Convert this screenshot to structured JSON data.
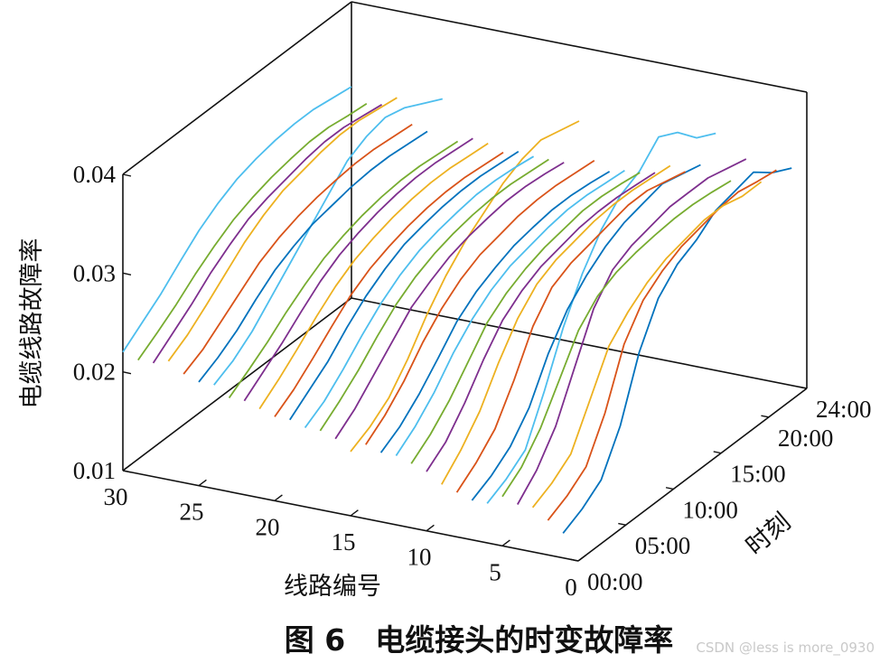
{
  "caption": "图 6　电缆接头的时变故障率",
  "watermark": "CSDN @less is more_0930",
  "chart_data": {
    "type": "line",
    "title": "",
    "zlabel": "电缆线路故障率",
    "xlabel": "线路编号",
    "ylabel": "时刻",
    "zlim": [
      0.01,
      0.04
    ],
    "z_ticks": [
      "0.01",
      "0.02",
      "0.03",
      "0.04"
    ],
    "x_ticks": [
      "0",
      "5",
      "10",
      "15",
      "20",
      "25",
      "30"
    ],
    "y_ticks": [
      "00:00",
      "05:00",
      "10:00",
      "15:00",
      "20:00",
      "24:00"
    ],
    "x_range": [
      0,
      30
    ],
    "y_range": [
      0,
      24
    ],
    "hours": [
      0,
      2,
      4,
      6,
      8,
      10,
      12,
      14,
      16,
      18,
      20,
      22,
      24
    ],
    "colors": [
      "#0072BD",
      "#D95319",
      "#EDB120",
      "#7E2F8E",
      "#77AC30",
      "#4DBEEE"
    ],
    "series": [
      {
        "line": 1,
        "values": [
          0.0125,
          0.0135,
          0.015,
          0.019,
          0.025,
          0.029,
          0.031,
          0.032,
          0.0335,
          0.034,
          0.0345,
          0.033,
          0.032
        ]
      },
      {
        "line": 2,
        "values": [
          0.0135,
          0.0145,
          0.016,
          0.02,
          0.0255,
          0.0285,
          0.03,
          0.031,
          0.0315,
          0.032,
          0.0322,
          0.0318,
          0.0315
        ]
      },
      {
        "line": 3,
        "values": [
          0.0145,
          0.0155,
          0.017,
          0.021,
          0.025,
          0.027,
          0.0285,
          0.0295,
          0.03,
          0.0305,
          0.0305,
          0.03,
          0.03
        ]
      },
      {
        "line": 4,
        "values": [
          0.0145,
          0.0165,
          0.0195,
          0.024,
          0.0285,
          0.031,
          0.032,
          0.0325,
          0.033,
          0.033,
          0.033,
          0.0325,
          0.032
        ]
      },
      {
        "line": 5,
        "values": [
          0.015,
          0.0165,
          0.019,
          0.0225,
          0.026,
          0.028,
          0.029,
          0.0295,
          0.0298,
          0.03,
          0.03,
          0.0298,
          0.0295
        ]
      },
      {
        "line": 6,
        "values": [
          0.014,
          0.015,
          0.0165,
          0.021,
          0.026,
          0.03,
          0.033,
          0.035,
          0.036,
          0.038,
          0.037,
          0.035,
          0.034
        ]
      },
      {
        "line": 7,
        "values": [
          0.014,
          0.015,
          0.0165,
          0.019,
          0.023,
          0.026,
          0.028,
          0.0295,
          0.0305,
          0.031,
          0.0315,
          0.031,
          0.0305
        ]
      },
      {
        "line": 8,
        "values": [
          0.0145,
          0.016,
          0.018,
          0.0215,
          0.0255,
          0.028,
          0.029,
          0.0295,
          0.03,
          0.0305,
          0.0305,
          0.03,
          0.0295
        ]
      },
      {
        "line": 9,
        "values": [
          0.015,
          0.017,
          0.0195,
          0.023,
          0.026,
          0.028,
          0.029,
          0.0295,
          0.03,
          0.0302,
          0.0302,
          0.03,
          0.0298
        ]
      },
      {
        "line": 10,
        "values": [
          0.016,
          0.0175,
          0.02,
          0.023,
          0.0255,
          0.027,
          0.028,
          0.0285,
          0.029,
          0.0292,
          0.0292,
          0.029,
          0.0288
        ]
      },
      {
        "line": 11,
        "values": [
          0.0165,
          0.018,
          0.02,
          0.0225,
          0.025,
          0.0265,
          0.0275,
          0.0282,
          0.0286,
          0.029,
          0.029,
          0.0288,
          0.0285
        ]
      },
      {
        "line": 12,
        "values": [
          0.017,
          0.0185,
          0.0205,
          0.023,
          0.025,
          0.0265,
          0.0275,
          0.028,
          0.0285,
          0.0288,
          0.0288,
          0.0286,
          0.0284
        ]
      },
      {
        "line": 13,
        "values": [
          0.017,
          0.0182,
          0.02,
          0.0222,
          0.0245,
          0.026,
          0.027,
          0.0278,
          0.0282,
          0.0285,
          0.0285,
          0.0283,
          0.028
        ]
      },
      {
        "line": 14,
        "values": [
          0.0175,
          0.019,
          0.021,
          0.0235,
          0.0255,
          0.027,
          0.028,
          0.0285,
          0.029,
          0.0292,
          0.0292,
          0.029,
          0.0288
        ]
      },
      {
        "line": 15,
        "values": [
          0.0165,
          0.0175,
          0.019,
          0.0215,
          0.0245,
          0.027,
          0.029,
          0.0305,
          0.032,
          0.033,
          0.0335,
          0.033,
          0.0325
        ]
      },
      {
        "line": 16,
        "values": [
          0.0175,
          0.019,
          0.021,
          0.023,
          0.025,
          0.0262,
          0.0272,
          0.0278,
          0.0282,
          0.0285,
          0.0285,
          0.0283,
          0.028
        ]
      },
      {
        "line": 17,
        "values": [
          0.018,
          0.0195,
          0.0212,
          0.0232,
          0.025,
          0.0263,
          0.0272,
          0.0278,
          0.0282,
          0.0284,
          0.0284,
          0.0282,
          0.028
        ]
      },
      {
        "line": 18,
        "values": [
          0.018,
          0.0192,
          0.021,
          0.023,
          0.0248,
          0.0262,
          0.0272,
          0.0278,
          0.0282,
          0.0285,
          0.0285,
          0.0283,
          0.028
        ]
      },
      {
        "line": 19,
        "values": [
          0.0185,
          0.02,
          0.0215,
          0.0235,
          0.0252,
          0.0265,
          0.0275,
          0.028,
          0.0284,
          0.0286,
          0.0286,
          0.0284,
          0.0282
        ]
      },
      {
        "line": 20,
        "values": [
          0.0185,
          0.0198,
          0.0215,
          0.0233,
          0.025,
          0.0262,
          0.027,
          0.0276,
          0.028,
          0.0282,
          0.0282,
          0.028,
          0.0278
        ]
      },
      {
        "line": 21,
        "values": [
          0.019,
          0.0205,
          0.0222,
          0.024,
          0.0256,
          0.0268,
          0.0276,
          0.0282,
          0.0286,
          0.0288,
          0.0288,
          0.0286,
          0.0284
        ]
      },
      {
        "line": 22,
        "values": [
          0.0195,
          0.021,
          0.0225,
          0.0242,
          0.0258,
          0.027,
          0.0278,
          0.0284,
          0.0288,
          0.029,
          0.029,
          0.0288,
          0.0286
        ]
      },
      {
        "line": 23,
        "values": [
          0.0195,
          0.0208,
          0.0222,
          0.0238,
          0.0252,
          0.0264,
          0.0272,
          0.0278,
          0.0282,
          0.0284,
          0.0284,
          0.0282,
          0.028
        ]
      },
      {
        "line": 24,
        "values": [
          0.0205,
          0.0215,
          0.023,
          0.025,
          0.027,
          0.029,
          0.031,
          0.033,
          0.034,
          0.0345,
          0.034,
          0.033,
          0.032
        ]
      },
      {
        "line": 25,
        "values": [
          0.0205,
          0.0215,
          0.0228,
          0.0245,
          0.026,
          0.027,
          0.0278,
          0.0282,
          0.0286,
          0.0288,
          0.0288,
          0.0286,
          0.0284
        ]
      },
      {
        "line": 26,
        "values": [
          0.021,
          0.022,
          0.0235,
          0.025,
          0.0265,
          0.0275,
          0.0282,
          0.0287,
          0.029,
          0.0292,
          0.0292,
          0.029,
          0.0288
        ]
      },
      {
        "line": 27,
        "values": [
          0.022,
          0.0232,
          0.0248,
          0.0265,
          0.0282,
          0.0295,
          0.0305,
          0.031,
          0.0315,
          0.0318,
          0.0318,
          0.0315,
          0.0312
        ]
      },
      {
        "line": 28,
        "values": [
          0.0215,
          0.023,
          0.0245,
          0.0262,
          0.0276,
          0.0288,
          0.0295,
          0.03,
          0.0305,
          0.0308,
          0.0308,
          0.0305,
          0.0302
        ]
      },
      {
        "line": 29,
        "values": [
          0.0215,
          0.0228,
          0.0242,
          0.0258,
          0.0272,
          0.0284,
          0.0292,
          0.0298,
          0.0302,
          0.0305,
          0.0305,
          0.0302,
          0.03
        ]
      },
      {
        "line": 30,
        "values": [
          0.022,
          0.0235,
          0.025,
          0.0268,
          0.0285,
          0.0298,
          0.0308,
          0.0314,
          0.0318,
          0.032,
          0.032,
          0.0317,
          0.0314
        ]
      }
    ]
  }
}
